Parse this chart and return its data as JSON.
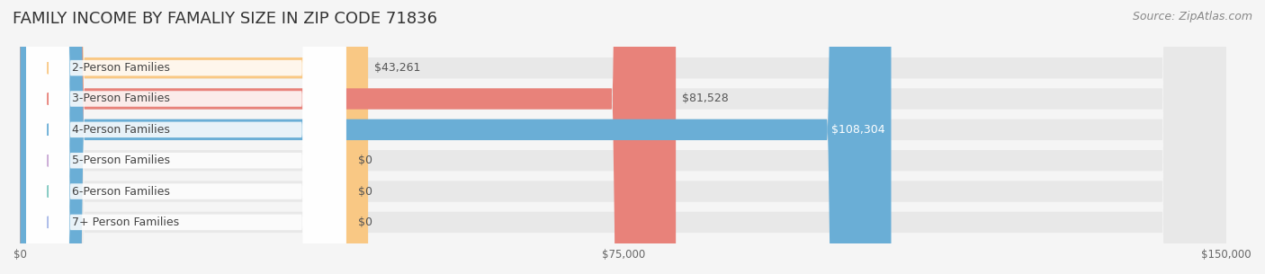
{
  "title": "FAMILY INCOME BY FAMALIY SIZE IN ZIP CODE 71836",
  "source": "Source: ZipAtlas.com",
  "categories": [
    "2-Person Families",
    "3-Person Families",
    "4-Person Families",
    "5-Person Families",
    "6-Person Families",
    "7+ Person Families"
  ],
  "values": [
    43261,
    81528,
    108304,
    0,
    0,
    0
  ],
  "bar_colors": [
    "#f9c884",
    "#e8827a",
    "#6aaed6",
    "#c9a8d4",
    "#7fc8c0",
    "#a8b8e8"
  ],
  "label_colors": [
    "#555555",
    "#555555",
    "#ffffff",
    "#555555",
    "#555555",
    "#555555"
  ],
  "value_labels": [
    "$43,261",
    "$81,528",
    "$108,304",
    "$0",
    "$0",
    "$0"
  ],
  "xlim": [
    0,
    150000
  ],
  "xticks": [
    0,
    75000,
    150000
  ],
  "xticklabels": [
    "$0",
    "$75,000",
    "$150,000"
  ],
  "background_color": "#f5f5f5",
  "bar_background": "#e8e8e8",
  "title_fontsize": 13,
  "source_fontsize": 9,
  "label_fontsize": 9,
  "value_fontsize": 9
}
